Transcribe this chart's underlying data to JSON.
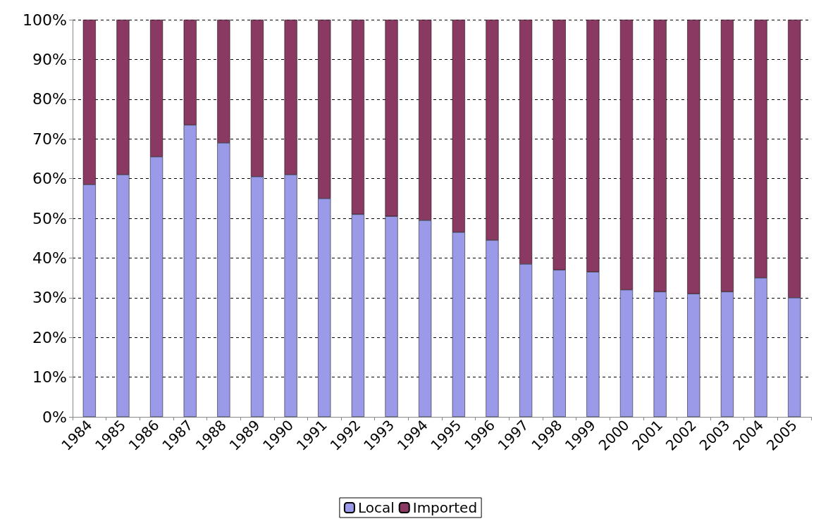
{
  "chart_data": {
    "type": "bar",
    "stacked": true,
    "categories": [
      "1984",
      "1985",
      "1986",
      "1987",
      "1988",
      "1989",
      "1990",
      "1991",
      "1992",
      "1993",
      "1994",
      "1995",
      "1996",
      "1997",
      "1998",
      "1999",
      "2000",
      "2001",
      "2002",
      "2003",
      "2004",
      "2005"
    ],
    "series": [
      {
        "name": "Local",
        "color": "#9a9ae8",
        "values": [
          58.5,
          61,
          65.5,
          73.5,
          69,
          60.5,
          61,
          55,
          51,
          50.5,
          49.5,
          46.5,
          44.5,
          38.5,
          37,
          36.5,
          32,
          31.5,
          31,
          31.5,
          35,
          30
        ]
      },
      {
        "name": "Imported",
        "color": "#8a3a62",
        "values": [
          41.5,
          39,
          34.5,
          26.5,
          31,
          39.5,
          39,
          45,
          49,
          49.5,
          50.5,
          53.5,
          55.5,
          61.5,
          63,
          63.5,
          68,
          68.5,
          69,
          68.5,
          65,
          70
        ]
      }
    ],
    "ylim": [
      0,
      100
    ],
    "yticks": [
      {
        "value": 0,
        "label": "0%"
      },
      {
        "value": 10,
        "label": "10%"
      },
      {
        "value": 20,
        "label": "20%"
      },
      {
        "value": 30,
        "label": "30%"
      },
      {
        "value": 40,
        "label": "40%"
      },
      {
        "value": 50,
        "label": "50%"
      },
      {
        "value": 60,
        "label": "60%"
      },
      {
        "value": 70,
        "label": "70%"
      },
      {
        "value": 80,
        "label": "80%"
      },
      {
        "value": 90,
        "label": "90%"
      },
      {
        "value": 100,
        "label": "100%"
      }
    ],
    "grid": "y",
    "legend": "bottom"
  }
}
